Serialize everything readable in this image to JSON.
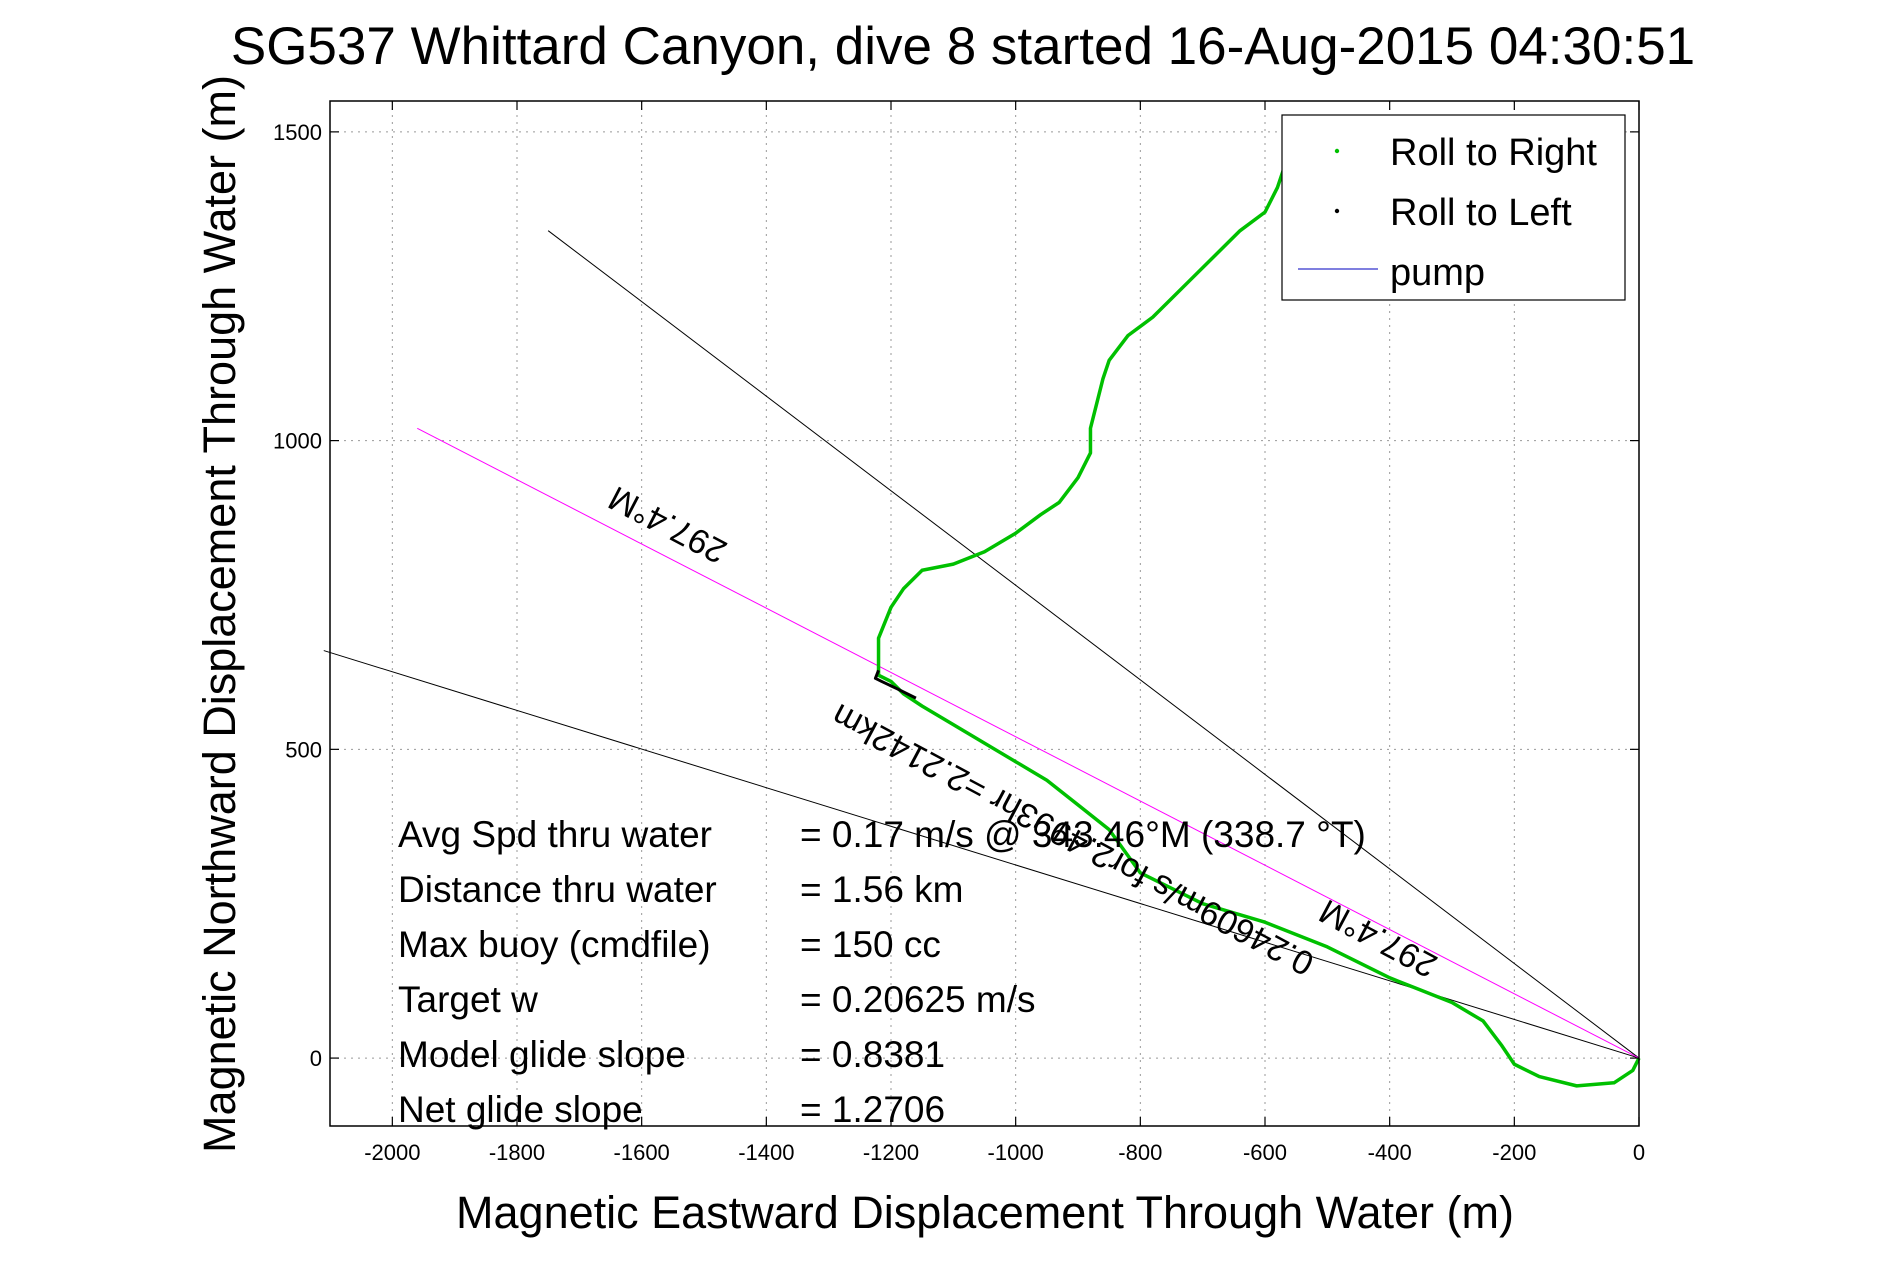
{
  "chart_data": {
    "type": "line",
    "title": "SG537 Whittard Canyon, dive 8 started 16-Aug-2015 04:30:51",
    "xlabel": "Magnetic Eastward Displacement Through Water (m)",
    "ylabel": "Magnetic Northward Displacement Through Water (m)",
    "xlim": [
      -2100,
      0
    ],
    "ylim": [
      -110,
      1550
    ],
    "xticks": [
      -2000,
      -1800,
      -1600,
      -1400,
      -1200,
      -1000,
      -800,
      -600,
      -400,
      -200,
      0
    ],
    "yticks": [
      0,
      500,
      1000,
      1500
    ],
    "grid": true,
    "legend_position": "top-right",
    "legend": [
      {
        "label": "Roll to Right",
        "color": "#00c000",
        "marker": "dot"
      },
      {
        "label": "Roll to Left",
        "color": "#000000",
        "marker": "dot"
      },
      {
        "label": "pump",
        "color": "#3333cc",
        "marker": "line"
      }
    ],
    "series": [
      {
        "name": "Roll to Right",
        "color": "#00c000",
        "x": [
          0,
          -10,
          -40,
          -100,
          -160,
          -200,
          -220,
          -250,
          -300,
          -350,
          -400,
          -500,
          -600,
          -700,
          -800,
          -850,
          -900,
          -950,
          -1000,
          -1100,
          -1150,
          -1180,
          -1200,
          -1220,
          -1220,
          -1200,
          -1180,
          -1150,
          -1100,
          -1050,
          -1000,
          -960,
          -930,
          -900,
          -880,
          -880,
          -870,
          -860,
          -850,
          -820,
          -780,
          -720,
          -680,
          -640,
          -600,
          -580,
          -570,
          -560
        ],
        "y": [
          0,
          -20,
          -40,
          -45,
          -30,
          -10,
          20,
          60,
          90,
          110,
          130,
          180,
          220,
          250,
          300,
          370,
          410,
          450,
          480,
          540,
          570,
          590,
          610,
          620,
          680,
          730,
          760,
          790,
          800,
          820,
          850,
          880,
          900,
          940,
          980,
          1020,
          1060,
          1100,
          1130,
          1170,
          1200,
          1260,
          1300,
          1340,
          1370,
          1410,
          1440,
          1450
        ]
      },
      {
        "name": "Roll to Left",
        "color": "#000000",
        "x": [
          -1160,
          -1190,
          -1215,
          -1225,
          -1220
        ],
        "y": [
          583,
          598,
          610,
          615,
          628
        ]
      }
    ],
    "reference_lines": [
      {
        "color": "#000000",
        "x": [
          0,
          -1750
        ],
        "y": [
          0,
          1340
        ]
      },
      {
        "color": "#000000",
        "x": [
          0,
          -2110
        ],
        "y": [
          0,
          660
        ]
      },
      {
        "color": "#ff00ff",
        "x": [
          0,
          -1960
        ],
        "y": [
          0,
          1020
        ]
      }
    ],
    "annotations": [
      {
        "text": "297.4°M",
        "x": -1550,
        "y": 880,
        "rotate": 207.5
      },
      {
        "text": "297.4°M",
        "x": -410,
        "y": 210,
        "rotate": 208
      },
      {
        "text": "0.24609m/s for2.4993hr =2.2142km",
        "x": -900,
        "y": 370,
        "rotate": 208
      }
    ],
    "stats": [
      {
        "label": "Avg Spd thru water",
        "value": "=  0.17 m/s @ 343.46°M (338.7 °T)"
      },
      {
        "label": "Distance thru water",
        "value": "=  1.56 km"
      },
      {
        "label": "Max buoy (cmdfile)",
        "value": "= 150 cc"
      },
      {
        "label": "Target w",
        "value": "= 0.20625 m/s"
      },
      {
        "label": "Model glide slope",
        "value": "= 0.8381"
      },
      {
        "label": "Net glide slope",
        "value": "= 1.2706"
      }
    ]
  }
}
